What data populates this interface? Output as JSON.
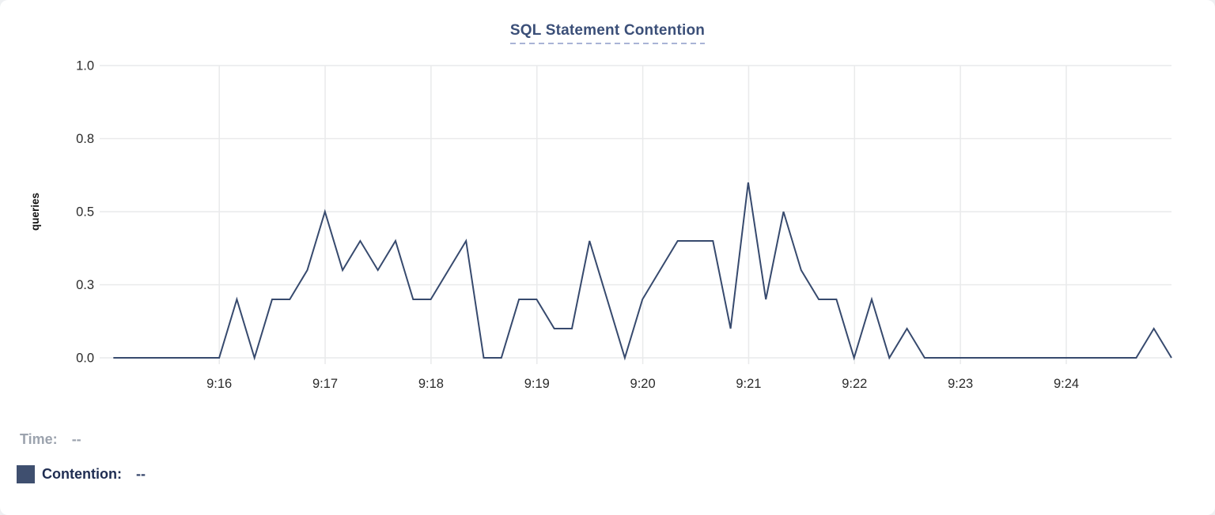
{
  "title": "SQL Statement Contention",
  "legend": {
    "time_label": "Time:",
    "time_value": "--",
    "contention_label": "Contention:",
    "contention_value": "--",
    "swatch_color": "#3F4F6F"
  },
  "colors": {
    "title": "#3B4F78",
    "title_underline": "#A9B3D6",
    "grid": "#E9EAEB",
    "tick_text": "#2B2B2B",
    "axis_label_text": "#111111",
    "series_line": "#374A6E",
    "card_background": "#FFFFFF",
    "page_background": "#EEF0F2"
  },
  "chart_data": {
    "type": "line",
    "title": "SQL Statement Contention",
    "xlabel": "",
    "ylabel": "queries",
    "ylim": [
      0,
      1.0
    ],
    "grid": true,
    "y_ticks": [
      1.0,
      0.75,
      0.5,
      0.25,
      0.0
    ],
    "y_tick_labels": [
      "1.0",
      "0.8",
      "0.5",
      "0.3",
      "0.0"
    ],
    "x_tick_labels": [
      "9:16",
      "9:17",
      "9:18",
      "9:19",
      "9:20",
      "9:21",
      "9:22",
      "9:23",
      "9:24"
    ],
    "x_start": "9:15:00",
    "x_end": "9:25:00",
    "x_interval_seconds": 10,
    "series": [
      {
        "name": "Contention",
        "color": "#374A6E",
        "values": [
          0,
          0,
          0,
          0,
          0,
          0,
          0,
          0.2,
          0,
          0.2,
          0.2,
          0.3,
          0.5,
          0.3,
          0.4,
          0.3,
          0.4,
          0.2,
          0.2,
          0.3,
          0.4,
          0,
          0,
          0.2,
          0.2,
          0.1,
          0.1,
          0.4,
          0.2,
          0,
          0.2,
          0.3,
          0.4,
          0.4,
          0.4,
          0.1,
          0.6,
          0.2,
          0.5,
          0.3,
          0.2,
          0.2,
          0,
          0.2,
          0,
          0.1,
          0,
          0,
          0,
          0,
          0,
          0,
          0,
          0,
          0,
          0,
          0,
          0,
          0,
          0.1,
          0
        ]
      }
    ]
  }
}
